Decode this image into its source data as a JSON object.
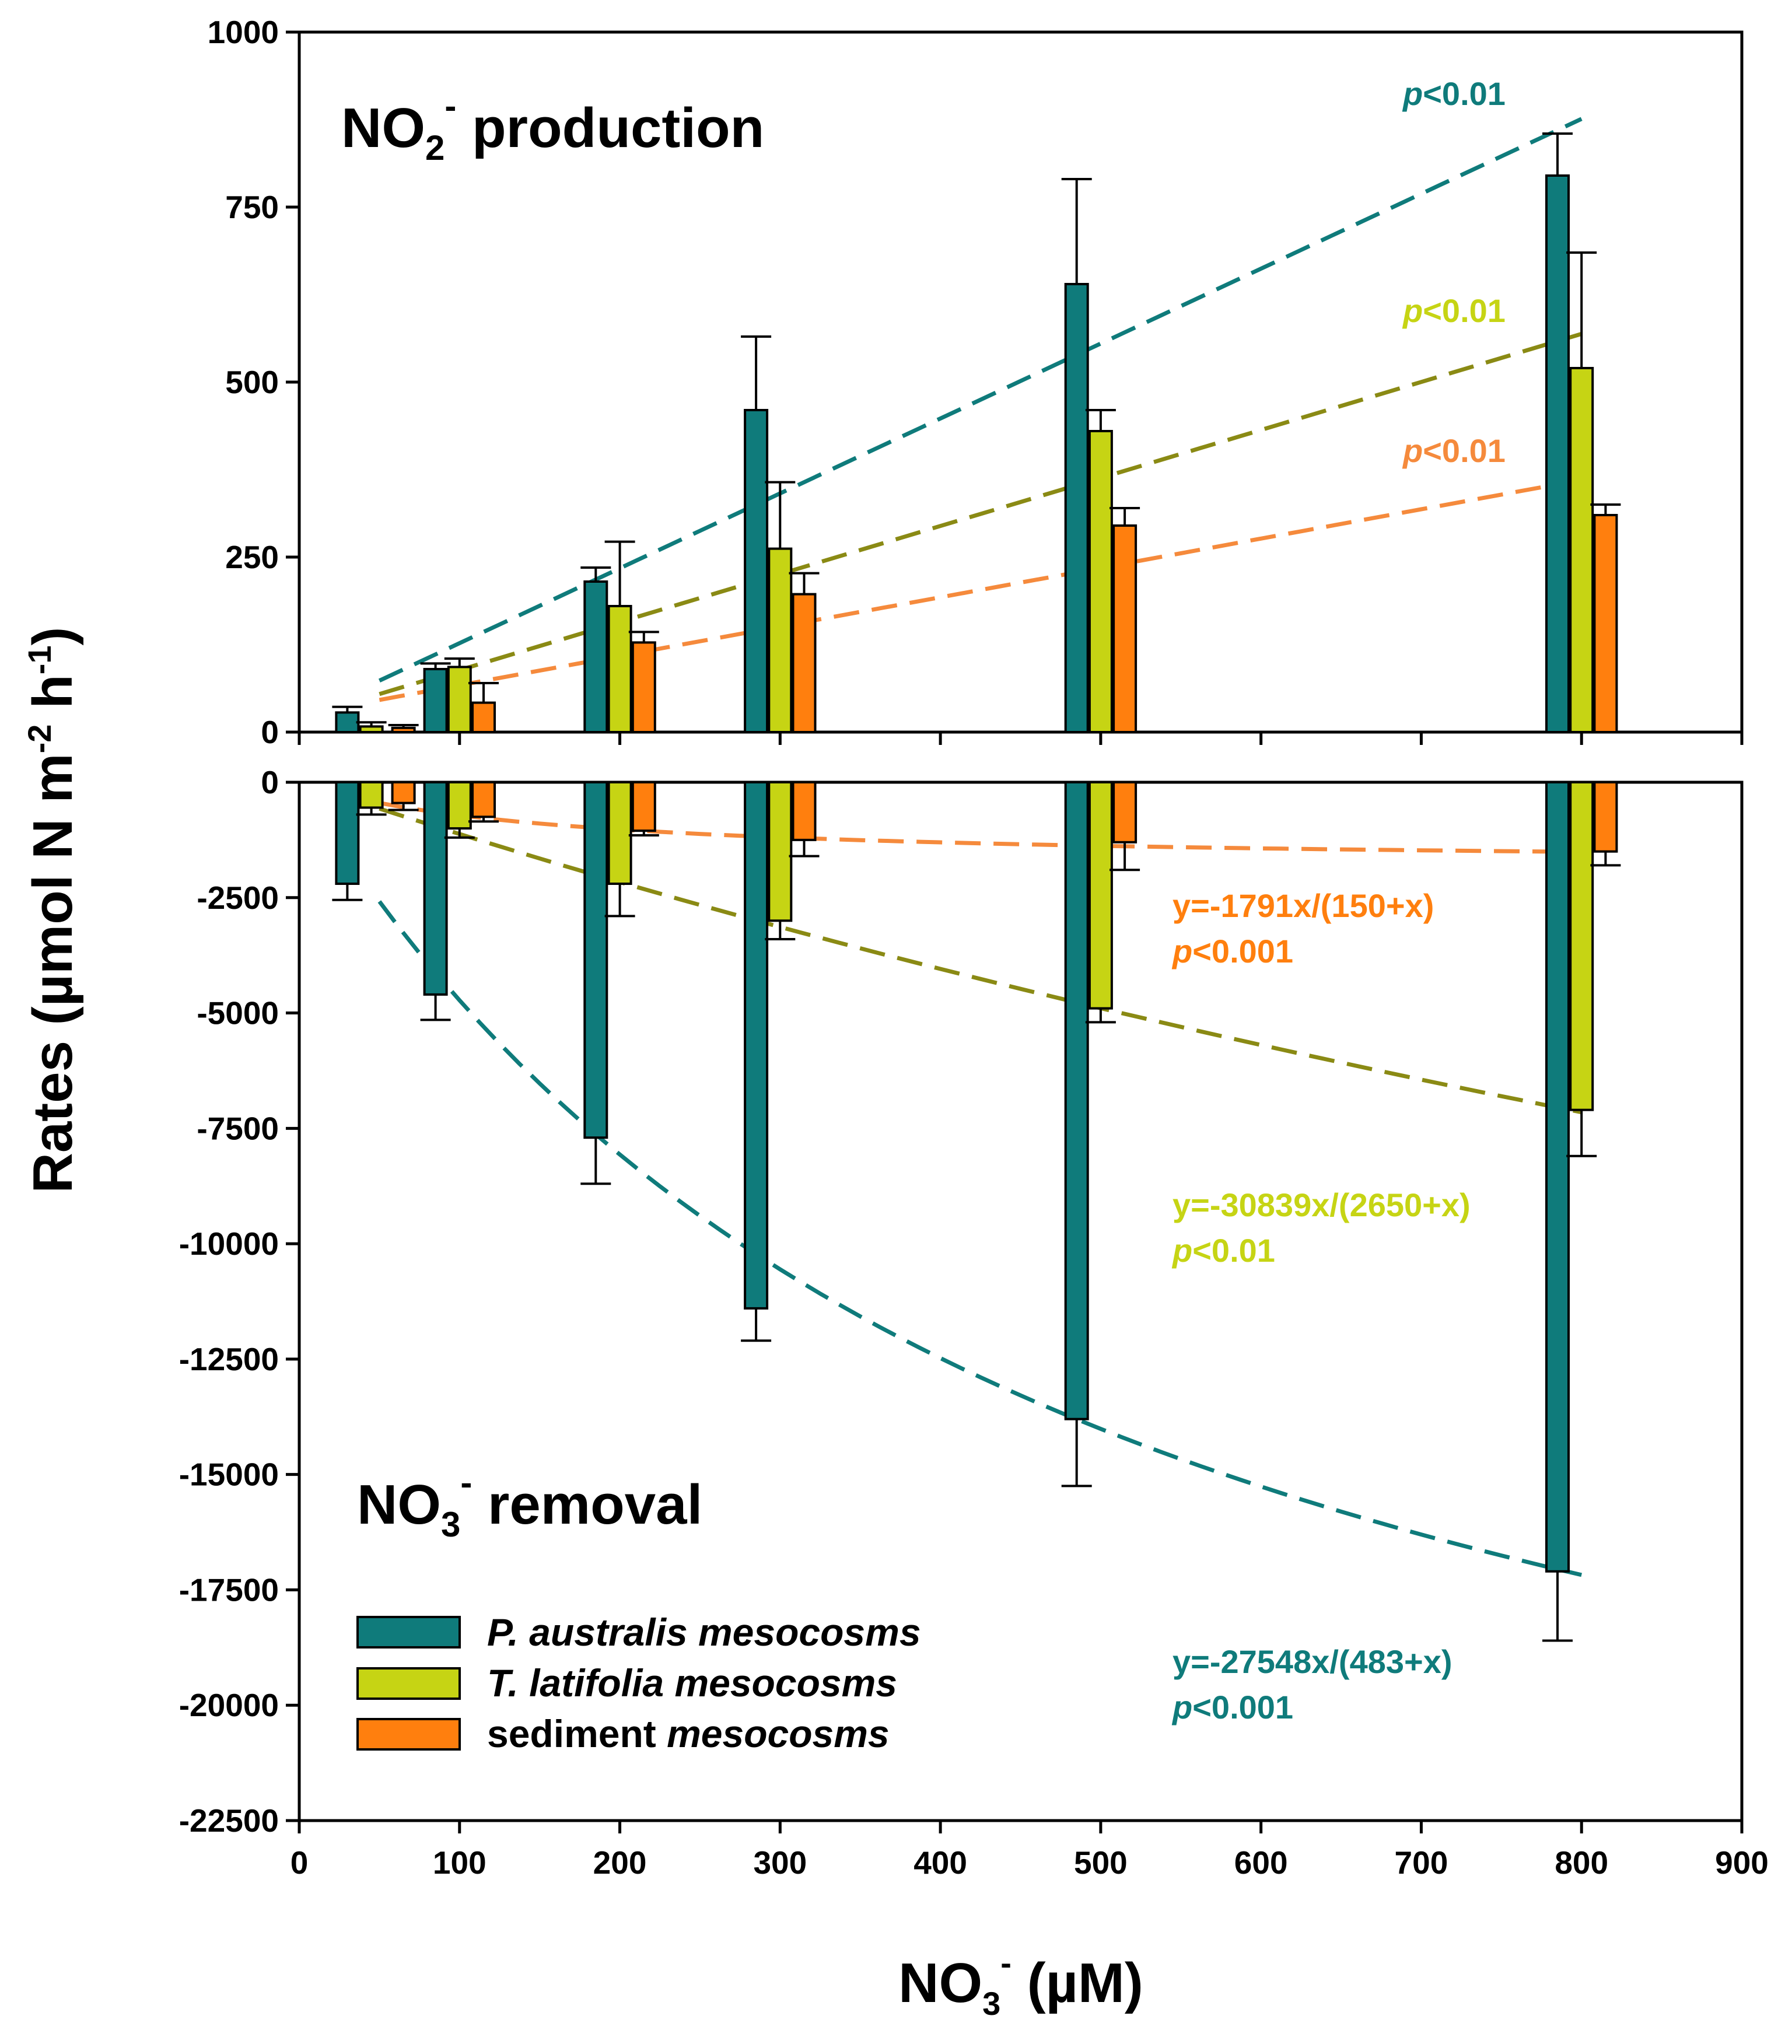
{
  "colors": {
    "p_australis": "#0f7b7b",
    "t_latifolia": "#c6d414",
    "sediment": "#ff7f0e",
    "t_latifolia_fit": "#8a8a14",
    "sediment_fit": "#f58a3c",
    "axis": "#000000"
  },
  "chart_data": [
    {
      "type": "bar",
      "title": "NO2- production",
      "title_main": "NO",
      "title_sub": "2",
      "title_sup": "-",
      "title_rest": " production",
      "ylim": [
        0,
        1000
      ],
      "yticks": [
        "0",
        "250",
        "500",
        "750",
        "1000"
      ],
      "ytick_values": [
        0,
        250,
        500,
        750,
        1000
      ],
      "series": [
        {
          "name": "P. australis mesocosms",
          "x": [
            30,
            85,
            185,
            285,
            485,
            785
          ],
          "values": [
            28,
            90,
            215,
            460,
            640,
            795
          ],
          "errors": [
            8,
            8,
            20,
            105,
            150,
            60
          ]
        },
        {
          "name": "T. latifolia mesocosms",
          "x": [
            45,
            100,
            200,
            300,
            500,
            800
          ],
          "values": [
            8,
            93,
            180,
            262,
            430,
            520
          ],
          "errors": [
            6,
            12,
            92,
            95,
            30,
            165
          ]
        },
        {
          "name": "sediment mesocosms",
          "x": [
            65,
            115,
            215,
            315,
            515,
            815
          ],
          "values": [
            6,
            42,
            128,
            197,
            295,
            310
          ],
          "errors": [
            4,
            28,
            15,
            30,
            25,
            15
          ]
        }
      ],
      "fits": [
        {
          "series": "P. australis mesocosms",
          "type": "linear",
          "x_range": [
            50,
            800
          ],
          "slope": 1.07,
          "intercept": 20,
          "label_p": "p",
          "label_rest": "<0.01"
        },
        {
          "series": "T. latifolia mesocosms",
          "type": "linear",
          "x_range": [
            50,
            800
          ],
          "slope": 0.686,
          "intercept": 20,
          "label_p": "p",
          "label_rest": "<0.01"
        },
        {
          "series": "sediment mesocosms",
          "type": "linear",
          "x_range": [
            50,
            800
          ],
          "slope": 0.419,
          "intercept": 25,
          "label_p": "p",
          "label_rest": "<0.01"
        }
      ]
    },
    {
      "type": "bar",
      "title": "NO3- removal",
      "title_main": "NO",
      "title_sub": "3",
      "title_sup": "-",
      "title_rest": " removal",
      "ylim": [
        -22500,
        0
      ],
      "yticks": [
        "-22500",
        "-20000",
        "-17500",
        "-15000",
        "-12500",
        "-10000",
        "-7500",
        "-5000",
        "-2500",
        "0"
      ],
      "ytick_values": [
        -22500,
        -20000,
        -17500,
        -15000,
        -12500,
        -10000,
        -7500,
        -5000,
        -2500,
        0
      ],
      "series": [
        {
          "name": "P. australis mesocosms",
          "x": [
            30,
            85,
            185,
            285,
            485,
            785
          ],
          "values": [
            -2200,
            -4600,
            -7700,
            -11400,
            -13800,
            -17100
          ],
          "errors": [
            350,
            550,
            1000,
            700,
            1450,
            1500
          ]
        },
        {
          "name": "T. latifolia mesocosms",
          "x": [
            45,
            100,
            200,
            300,
            500,
            800
          ],
          "values": [
            -550,
            -1000,
            -2200,
            -3000,
            -4900,
            -7100
          ],
          "errors": [
            150,
            200,
            700,
            400,
            300,
            1000
          ]
        },
        {
          "name": "sediment mesocosms",
          "x": [
            65,
            115,
            215,
            315,
            515,
            815
          ],
          "values": [
            -450,
            -750,
            -1050,
            -1250,
            -1300,
            -1500
          ],
          "errors": [
            150,
            100,
            100,
            350,
            600,
            300
          ]
        }
      ],
      "fits": [
        {
          "series": "P. australis mesocosms",
          "type": "michaelis-menten",
          "vmax": -27548,
          "km": 483,
          "x_range": [
            50,
            800
          ],
          "equation": "y=-27548x/(483+x)",
          "label_p": "p",
          "label_rest": "<0.001"
        },
        {
          "series": "T. latifolia mesocosms",
          "type": "michaelis-menten",
          "vmax": -30839,
          "km": 2650,
          "x_range": [
            50,
            800
          ],
          "equation": "y=-30839x/(2650+x)",
          "label_p": "p",
          "label_rest": "<0.01"
        },
        {
          "series": "sediment mesocosms",
          "type": "michaelis-menten",
          "vmax": -1791,
          "km": 150,
          "x_range": [
            50,
            800
          ],
          "equation": "y=-1791x/(150+x)",
          "label_p": "p",
          "label_rest": "<0.001"
        }
      ]
    }
  ],
  "x_axis": {
    "xlim": [
      0,
      900
    ],
    "ticks": [
      "0",
      "100",
      "200",
      "300",
      "400",
      "500",
      "600",
      "700",
      "800",
      "900"
    ],
    "tick_values": [
      0,
      100,
      200,
      300,
      400,
      500,
      600,
      700,
      800,
      900
    ],
    "label_main": "NO",
    "label_sub": "3",
    "label_sup": "-",
    "label_rest": " (µM)"
  },
  "y_axis": {
    "label_a": "Rates (µmol N m",
    "label_sup1": "-2",
    "label_b": " h",
    "label_sup2": "-1",
    "label_c": ")"
  },
  "legend": [
    {
      "italic": "P. australis mesocosms",
      "plain": ""
    },
    {
      "italic": "T. latifolia mesocosms",
      "plain": ""
    },
    {
      "plain": "sediment ",
      "italic": "mesocosms"
    }
  ]
}
